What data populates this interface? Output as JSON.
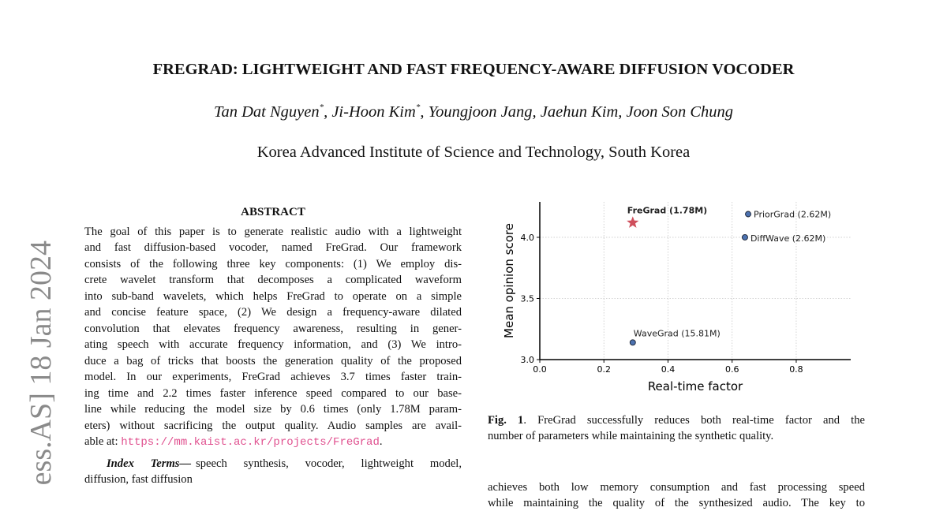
{
  "arxiv_stamp": "ess.AS]  18 Jan 2024",
  "title": "FREGRAD: LIGHTWEIGHT AND FAST FREQUENCY-AWARE DIFFUSION VOCODER",
  "authors": [
    {
      "name": "Tan Dat Nguyen",
      "mark": "*",
      "sep": ","
    },
    {
      "name": "Ji-Hoon Kim",
      "mark": "*",
      "sep": ","
    },
    {
      "name": "Youngjoon Jang",
      "sep": ","
    },
    {
      "name": "Jaehun Kim",
      "sep": ","
    },
    {
      "name": "Joon Son Chung"
    }
  ],
  "affiliation": "Korea Advanced Institute of Science and Technology, South Korea",
  "abstract": {
    "heading": "ABSTRACT",
    "lines": [
      "The goal of this paper is to generate realistic audio with a lightweight",
      "and fast diffusion-based vocoder, named FreGrad.  Our framework",
      "consists of the following three key components: (1) We employ dis-",
      "crete wavelet transform that decomposes a complicated waveform",
      "into sub-band wavelets, which helps FreGrad to operate on a simple",
      "and concise feature space, (2) We design a frequency-aware dilated",
      "convolution that elevates frequency awareness, resulting in gener-",
      "ating speech with accurate frequency information, and (3) We intro-",
      "duce a bag of tricks that boosts the generation quality of the proposed",
      "model.  In our experiments, FreGrad achieves 3.7 times faster train-",
      "ing time and 2.2 times faster inference speed compared to our base-",
      "line while reducing the model size by 0.6 times (only 1.78M param-",
      "eters) without sacrificing the output quality.  Audio samples are avail-"
    ],
    "last_line_prefix": "able at: ",
    "url": "https://mm.kaist.ac.kr/projects/FreGrad",
    "last_line_suffix": "."
  },
  "index_terms": {
    "label": "Index Terms—",
    "lines": [
      "speech synthesis, vocoder, lightweight model,",
      "diffusion, fast diffusion"
    ]
  },
  "figure": {
    "caption_label": "Fig. 1",
    "caption_lines": [
      ".  FreGrad successfully reduces both real-time factor and the",
      "number of parameters while maintaining the synthetic quality."
    ]
  },
  "body_lines": [
    "achieves both low memory consumption and fast processing speed",
    "while maintaining the quality of the synthesized audio.  The key to"
  ],
  "chart_data": {
    "type": "scatter",
    "xlabel": "Real-time factor",
    "ylabel": "Mean opinion score",
    "xlim": [
      0,
      0.97
    ],
    "ylim": [
      3.0,
      4.29
    ],
    "xticks": [
      {
        "value": 0,
        "label": "0.0"
      },
      0.2,
      0.4,
      0.6,
      0.8
    ],
    "yticks": [
      {
        "value": 3,
        "label": "3.0"
      },
      3.5,
      {
        "value": 4,
        "label": "4.0"
      }
    ],
    "grid": true,
    "series": [
      {
        "name": "FreGrad (1.78M)",
        "color": "#cf4f5c",
        "marker": "star",
        "x": [
          0.29
        ],
        "values": [
          4.12
        ]
      },
      {
        "name": "PriorGrad (2.62M)",
        "color": "#4c72b0",
        "marker": "circle",
        "x": [
          0.65
        ],
        "values": [
          4.19
        ]
      },
      {
        "name": "DiffWave (2.62M)",
        "color": "#4c72b0",
        "marker": "circle",
        "x": [
          0.64
        ],
        "values": [
          4.0
        ]
      },
      {
        "name": "WaveGrad (15.81M)",
        "color": "#4c72b0",
        "marker": "circle",
        "x": [
          0.29
        ],
        "values": [
          3.14
        ]
      }
    ]
  }
}
